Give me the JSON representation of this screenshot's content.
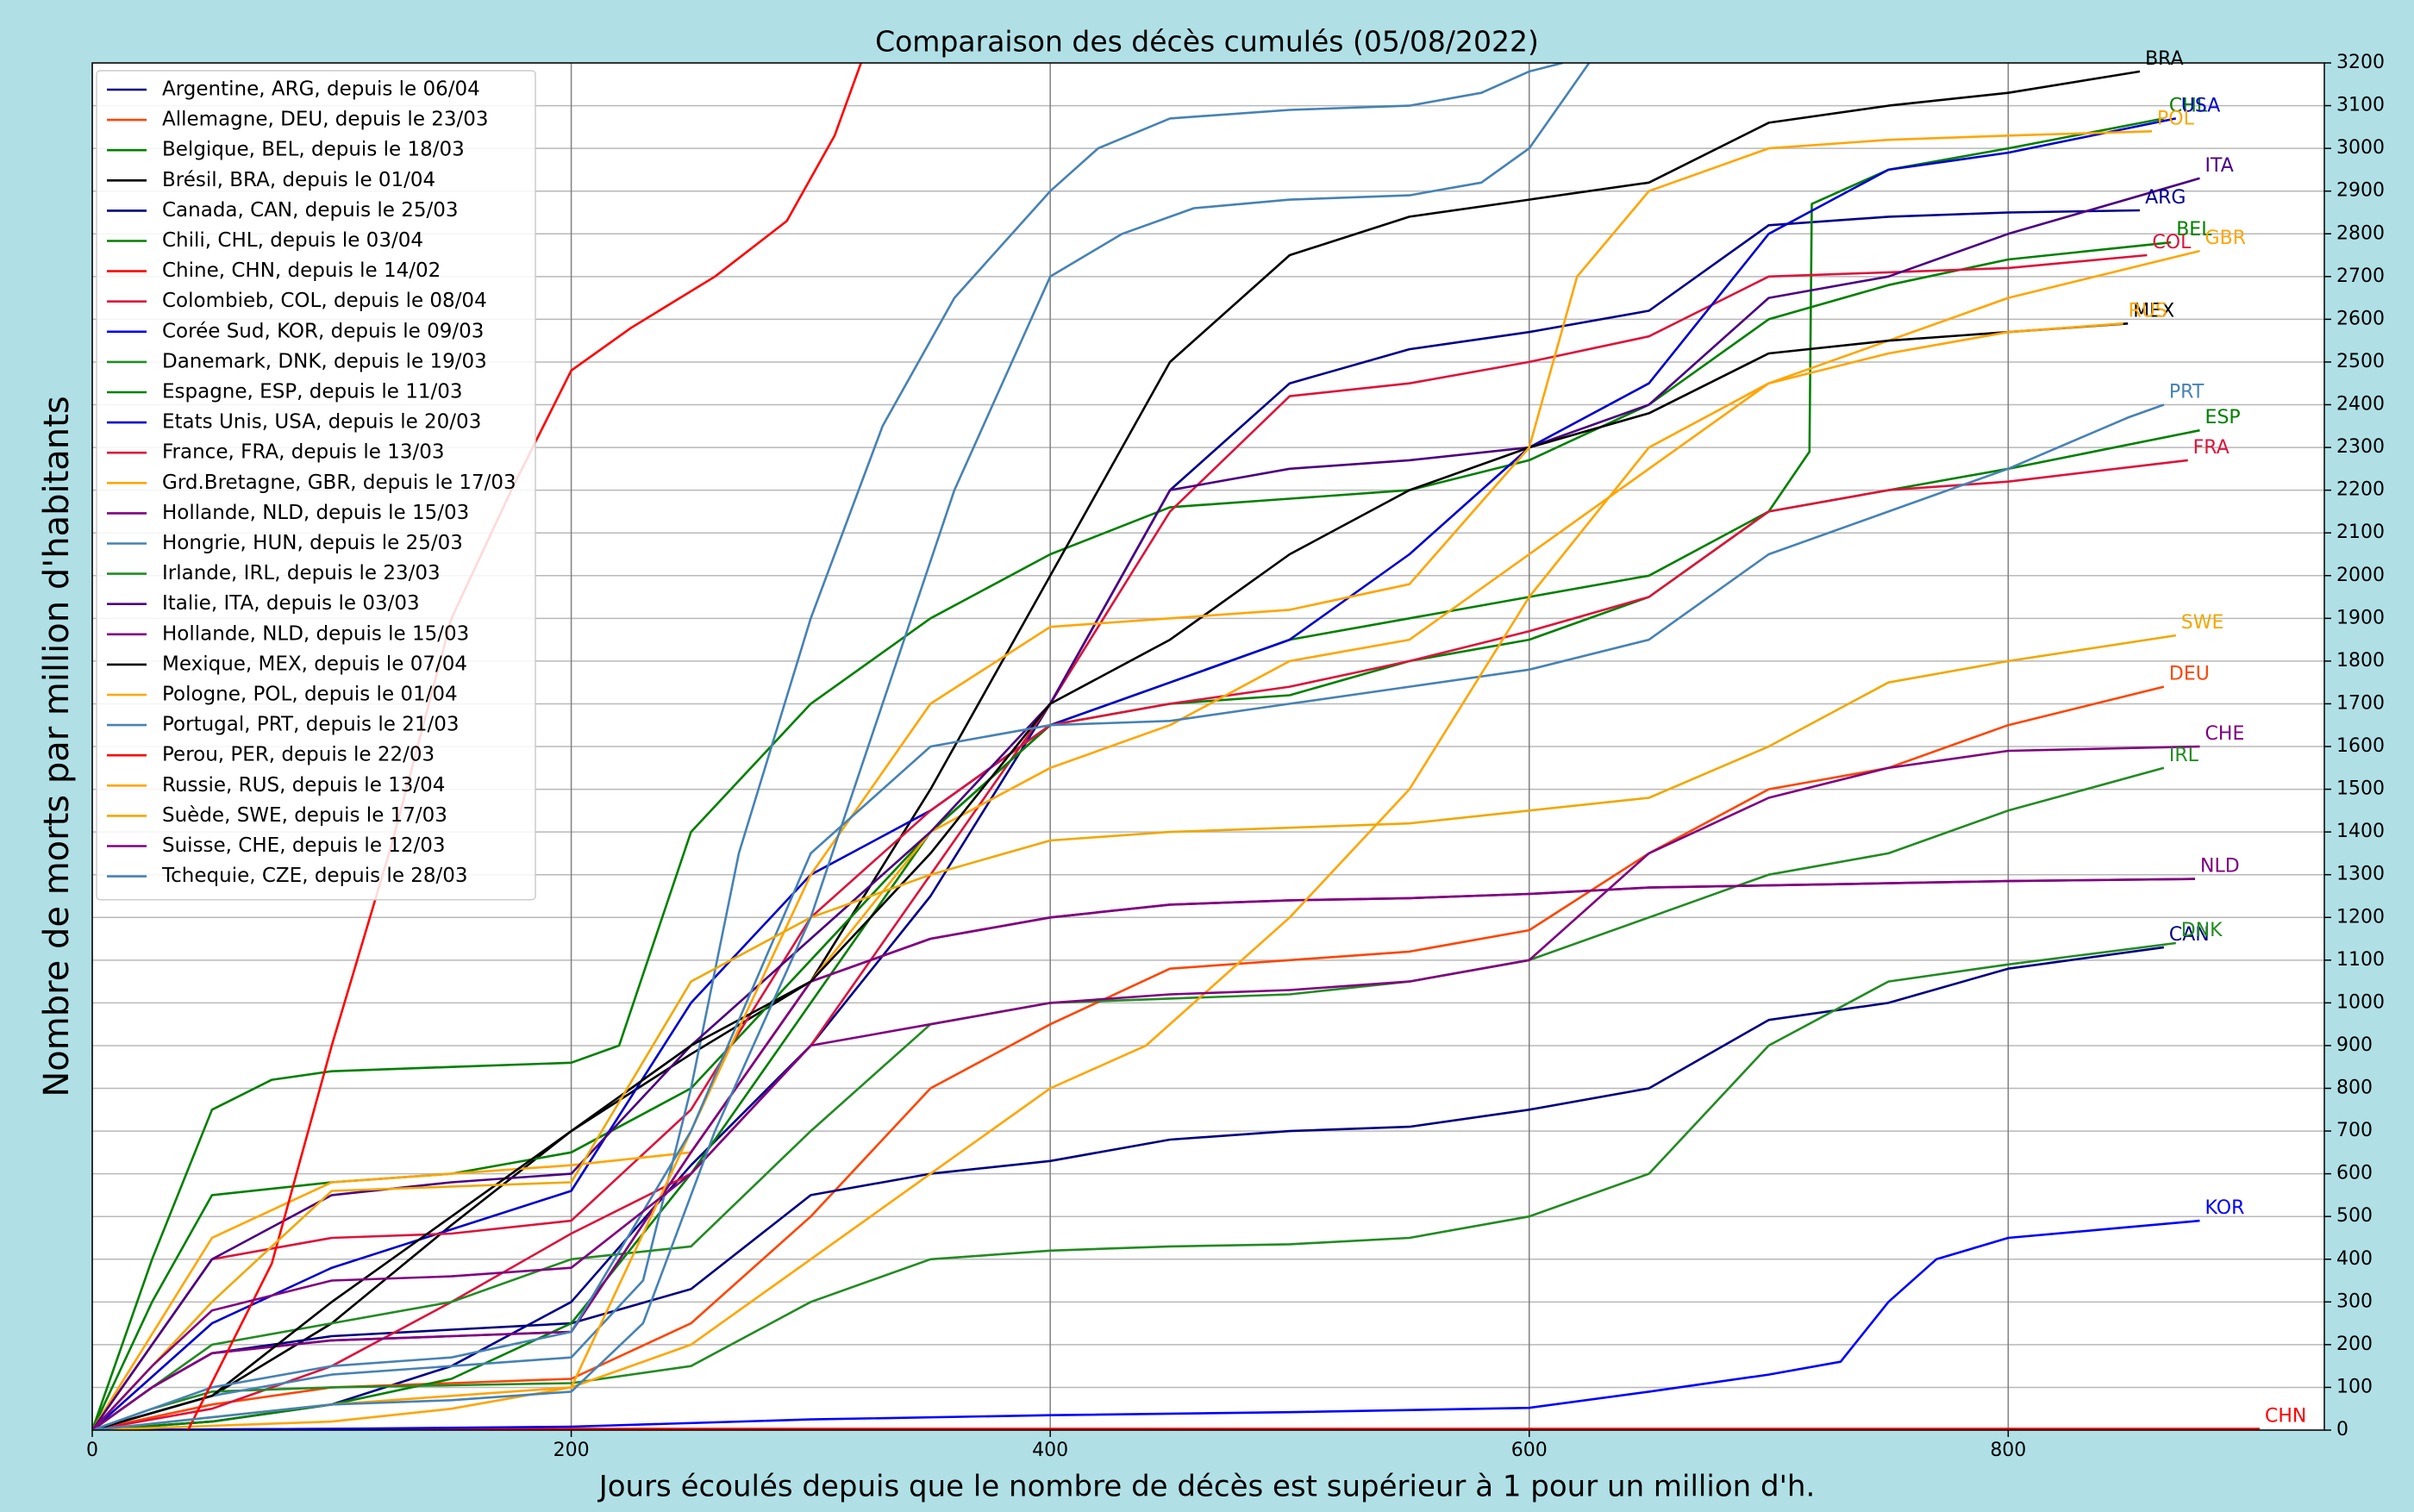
{
  "chart_data": {
    "type": "line",
    "title": "Comparaison des décès cumulés  (05/08/2022)",
    "xlabel": "Jours écoulés depuis que le nombre de décès est supérieur à 1 pour un million d'h.",
    "ylabel": "Nombre de morts par million d'habitants",
    "xlim": [
      0,
      932
    ],
    "ylim": [
      0,
      3200
    ],
    "xticks": [
      0,
      200,
      400,
      600,
      800
    ],
    "yticks": [
      0,
      100,
      200,
      300,
      400,
      500,
      600,
      700,
      800,
      900,
      1000,
      1100,
      1200,
      1300,
      1400,
      1500,
      1600,
      1700,
      1800,
      1900,
      2000,
      2100,
      2200,
      2300,
      2400,
      2500,
      2600,
      2700,
      2800,
      2900,
      3000,
      3100,
      3200
    ],
    "grid": true,
    "legend": "upper left",
    "series": [
      {
        "name": "Argentine, ARG, depuis le 06/04",
        "label": "ARG",
        "color": "#00008b",
        "x": [
          0,
          50,
          100,
          150,
          200,
          250,
          300,
          350,
          400,
          450,
          500,
          550,
          600,
          650,
          700,
          750,
          800,
          855
        ],
        "values": [
          0,
          20,
          60,
          150,
          300,
          620,
          900,
          1250,
          1700,
          2200,
          2450,
          2530,
          2570,
          2620,
          2820,
          2840,
          2850,
          2855
        ]
      },
      {
        "name": "Allemagne, DEU, depuis le 23/03",
        "label": "DEU",
        "color": "#ff4500",
        "x": [
          0,
          50,
          100,
          150,
          200,
          250,
          300,
          350,
          400,
          450,
          500,
          550,
          600,
          650,
          700,
          750,
          800,
          865
        ],
        "values": [
          0,
          60,
          100,
          110,
          120,
          250,
          500,
          800,
          950,
          1080,
          1100,
          1120,
          1170,
          1350,
          1500,
          1550,
          1650,
          1740
        ]
      },
      {
        "name": "Belgique, BEL, depuis le 18/03",
        "label": "BEL",
        "color": "#008000",
        "x": [
          0,
          25,
          50,
          75,
          100,
          150,
          200,
          220,
          250,
          300,
          350,
          400,
          450,
          500,
          550,
          600,
          650,
          700,
          750,
          800,
          868
        ],
        "values": [
          0,
          400,
          750,
          820,
          840,
          850,
          860,
          900,
          1400,
          1700,
          1900,
          2050,
          2160,
          2180,
          2200,
          2270,
          2400,
          2600,
          2680,
          2740,
          2780
        ]
      },
      {
        "name": "Brésil, BRA, depuis le 01/04",
        "label": "BRA",
        "color": "#000000",
        "x": [
          0,
          50,
          100,
          150,
          200,
          250,
          300,
          350,
          400,
          450,
          500,
          550,
          600,
          650,
          700,
          750,
          800,
          855
        ],
        "values": [
          0,
          80,
          250,
          480,
          700,
          880,
          1050,
          1500,
          2000,
          2500,
          2750,
          2840,
          2880,
          2920,
          3060,
          3100,
          3130,
          3180
        ]
      },
      {
        "name": "Canada, CAN, depuis le 25/03",
        "label": "CAN",
        "color": "#000080",
        "x": [
          0,
          25,
          50,
          100,
          150,
          200,
          250,
          300,
          350,
          400,
          450,
          500,
          550,
          600,
          650,
          700,
          750,
          800,
          865
        ],
        "values": [
          0,
          100,
          180,
          220,
          235,
          250,
          330,
          550,
          600,
          630,
          680,
          700,
          710,
          750,
          800,
          960,
          1000,
          1080,
          1130
        ]
      },
      {
        "name": "Chili, CHL, depuis le 03/04",
        "label": "CHL",
        "color": "#008000",
        "x": [
          0,
          50,
          100,
          150,
          200,
          250,
          300,
          350,
          400,
          450,
          500,
          550,
          600,
          650,
          700,
          717,
          718,
          750,
          800,
          865
        ],
        "values": [
          0,
          20,
          60,
          120,
          250,
          600,
          1000,
          1400,
          1650,
          1750,
          1850,
          1900,
          1950,
          2000,
          2150,
          2290,
          2870,
          2950,
          3000,
          3070
        ]
      },
      {
        "name": "Chine, CHN, depuis le 14/02",
        "label": "CHN",
        "color": "#ff0000",
        "x": [
          0,
          100,
          905
        ],
        "values": [
          0,
          3,
          3
        ]
      },
      {
        "name": "Colombieb, COL, depuis le 08/04",
        "label": "COL",
        "color": "#dc143c",
        "x": [
          0,
          50,
          100,
          150,
          200,
          250,
          300,
          350,
          400,
          450,
          500,
          550,
          600,
          650,
          700,
          750,
          800,
          858
        ],
        "values": [
          0,
          50,
          150,
          300,
          460,
          600,
          900,
          1300,
          1700,
          2150,
          2420,
          2450,
          2500,
          2560,
          2700,
          2710,
          2720,
          2750
        ]
      },
      {
        "name": "Corée Sud, KOR, depuis le 09/03",
        "label": "KOR",
        "color": "#0000ff",
        "x": [
          0,
          100,
          200,
          300,
          400,
          500,
          600,
          650,
          700,
          730,
          750,
          770,
          800,
          850,
          880
        ],
        "values": [
          0,
          3,
          8,
          25,
          35,
          42,
          52,
          90,
          130,
          160,
          300,
          400,
          450,
          475,
          490
        ]
      },
      {
        "name": "Danemark, DNK, depuis le 19/03",
        "label": "DNK",
        "color": "#228b22",
        "x": [
          0,
          25,
          50,
          100,
          150,
          200,
          250,
          300,
          350,
          400,
          450,
          500,
          550,
          600,
          650,
          700,
          750,
          800,
          870
        ],
        "values": [
          0,
          50,
          90,
          100,
          105,
          110,
          150,
          300,
          400,
          420,
          430,
          435,
          450,
          500,
          600,
          900,
          1050,
          1090,
          1140
        ]
      },
      {
        "name": "Espagne, ESP, depuis le 11/03",
        "label": "ESP",
        "color": "#008000",
        "x": [
          0,
          25,
          50,
          100,
          150,
          200,
          250,
          300,
          350,
          400,
          450,
          500,
          550,
          600,
          650,
          700,
          750,
          800,
          880
        ],
        "values": [
          0,
          300,
          550,
          580,
          600,
          650,
          800,
          1100,
          1400,
          1650,
          1700,
          1720,
          1800,
          1850,
          1950,
          2150,
          2200,
          2250,
          2340
        ]
      },
      {
        "name": "Etats Unis, USA, depuis le 20/03",
        "label": "USA",
        "color": "#0000cd",
        "x": [
          0,
          50,
          100,
          150,
          200,
          250,
          300,
          350,
          400,
          450,
          500,
          550,
          600,
          650,
          700,
          750,
          800,
          870
        ],
        "values": [
          0,
          250,
          380,
          470,
          560,
          1000,
          1300,
          1450,
          1650,
          1750,
          1850,
          2050,
          2300,
          2450,
          2800,
          2950,
          2990,
          3070
        ]
      },
      {
        "name": "France, FRA, depuis le 13/03",
        "label": "FRA",
        "color": "#dc143c",
        "x": [
          0,
          25,
          50,
          100,
          150,
          200,
          250,
          300,
          350,
          400,
          450,
          500,
          550,
          600,
          650,
          700,
          750,
          800,
          875
        ],
        "values": [
          0,
          200,
          400,
          450,
          460,
          490,
          750,
          1200,
          1450,
          1650,
          1700,
          1740,
          1800,
          1870,
          1950,
          2150,
          2200,
          2220,
          2270
        ]
      },
      {
        "name": "Grd.Bretagne, GBR, depuis le 17/03",
        "label": "GBR",
        "color": "#ffa500",
        "x": [
          0,
          50,
          100,
          150,
          200,
          250,
          300,
          350,
          400,
          450,
          500,
          550,
          600,
          650,
          700,
          750,
          800,
          880
        ],
        "values": [
          0,
          450,
          580,
          600,
          620,
          650,
          1050,
          1400,
          1550,
          1650,
          1800,
          1850,
          2050,
          2250,
          2450,
          2550,
          2650,
          2760
        ]
      },
      {
        "name": "Hollande, NLD, depuis le 15/03",
        "label": "NLD",
        "color": "#800080",
        "x": [
          0,
          25,
          50,
          100,
          150,
          200,
          250,
          300,
          350,
          400,
          450,
          500,
          550,
          600,
          650,
          700,
          750,
          800,
          878
        ],
        "values": [
          0,
          100,
          180,
          210,
          220,
          230,
          650,
          1050,
          1150,
          1200,
          1230,
          1240,
          1245,
          1255,
          1270,
          1275,
          1280,
          1285,
          1290
        ]
      },
      {
        "name": "Hongrie, HUN, depuis le 25/03",
        "color": "#4682b4",
        "x": [
          0,
          50,
          100,
          150,
          200,
          230,
          250,
          270,
          300,
          330,
          360,
          400,
          420,
          450,
          500,
          550,
          580,
          600,
          614
        ],
        "values": [
          0,
          80,
          130,
          150,
          170,
          350,
          800,
          1350,
          1900,
          2350,
          2650,
          2900,
          3000,
          3070,
          3090,
          3100,
          3130,
          3180,
          3200
        ]
      },
      {
        "name": "Irlande, IRL, depuis le 23/03",
        "label": "IRL",
        "color": "#228b22",
        "x": [
          0,
          25,
          50,
          100,
          150,
          200,
          250,
          300,
          350,
          400,
          450,
          500,
          550,
          600,
          650,
          700,
          750,
          800,
          865
        ],
        "values": [
          0,
          100,
          200,
          250,
          300,
          400,
          430,
          700,
          950,
          1000,
          1010,
          1020,
          1050,
          1100,
          1200,
          1300,
          1350,
          1450,
          1550
        ]
      },
      {
        "name": "Italie, ITA, depuis le 03/03",
        "label": "ITA",
        "color": "#4b0082",
        "x": [
          0,
          25,
          50,
          100,
          150,
          200,
          250,
          300,
          350,
          400,
          450,
          500,
          550,
          600,
          650,
          700,
          750,
          800,
          880
        ],
        "values": [
          0,
          200,
          400,
          550,
          580,
          600,
          900,
          1150,
          1400,
          1700,
          2200,
          2250,
          2270,
          2300,
          2400,
          2650,
          2700,
          2800,
          2930
        ]
      },
      {
        "name": "Hollande, NLD, depuis le 15/03",
        "color": "#800080",
        "x": [
          0,
          25,
          50,
          100,
          150,
          200,
          250,
          300,
          350,
          400,
          450,
          500,
          550,
          600,
          650,
          700,
          750,
          800,
          878
        ],
        "values": [
          0,
          100,
          180,
          210,
          220,
          230,
          650,
          1050,
          1150,
          1200,
          1230,
          1240,
          1245,
          1255,
          1270,
          1275,
          1280,
          1285,
          1290
        ]
      },
      {
        "name": "Mexique, MEX, depuis le 07/04",
        "label": "MEX",
        "color": "#000000",
        "x": [
          0,
          50,
          100,
          150,
          200,
          250,
          300,
          350,
          400,
          450,
          500,
          550,
          600,
          650,
          700,
          750,
          800,
          850
        ],
        "values": [
          0,
          80,
          300,
          500,
          700,
          900,
          1050,
          1350,
          1700,
          1850,
          2050,
          2200,
          2300,
          2380,
          2520,
          2550,
          2570,
          2590
        ]
      },
      {
        "name": "Pologne, POL, depuis le 01/04",
        "label": "POL",
        "color": "#ffa500",
        "x": [
          0,
          50,
          100,
          150,
          200,
          250,
          300,
          350,
          400,
          450,
          500,
          550,
          600,
          620,
          650,
          700,
          750,
          800,
          860
        ],
        "values": [
          0,
          10,
          20,
          50,
          100,
          700,
          1300,
          1700,
          1880,
          1900,
          1920,
          1980,
          2300,
          2700,
          2900,
          3000,
          3020,
          3030,
          3040
        ]
      },
      {
        "name": "Portugal, PRT, depuis le 21/03",
        "label": "PRT",
        "color": "#4682b4",
        "x": [
          0,
          50,
          100,
          150,
          200,
          250,
          300,
          350,
          400,
          450,
          500,
          550,
          600,
          650,
          700,
          750,
          800,
          850,
          865
        ],
        "values": [
          0,
          100,
          150,
          170,
          230,
          700,
          1350,
          1600,
          1650,
          1660,
          1700,
          1740,
          1780,
          1850,
          2050,
          2150,
          2250,
          2370,
          2400
        ]
      },
      {
        "name": "Perou, PER, depuis le 22/03",
        "color": "#ff0000",
        "x": [
          40,
          75,
          100,
          125,
          150,
          175,
          200,
          225,
          260,
          290,
          310,
          321
        ],
        "values": [
          0,
          390,
          900,
          1370,
          1900,
          2200,
          2480,
          2580,
          2700,
          2830,
          3030,
          3200
        ]
      },
      {
        "name": "Russie, RUS, depuis le 13/04",
        "label": "RUS",
        "color": "#ffa500",
        "x": [
          0,
          50,
          100,
          150,
          200,
          250,
          300,
          350,
          400,
          440,
          500,
          550,
          600,
          650,
          700,
          750,
          800,
          848
        ],
        "values": [
          0,
          30,
          60,
          80,
          100,
          200,
          400,
          600,
          800,
          900,
          1200,
          1500,
          1950,
          2300,
          2450,
          2520,
          2570,
          2590
        ]
      },
      {
        "name": "Suède, SWE, depuis le 17/03",
        "label": "SWE",
        "color": "#f0a800",
        "x": [
          0,
          50,
          100,
          150,
          200,
          250,
          300,
          350,
          400,
          450,
          500,
          550,
          600,
          650,
          700,
          750,
          800,
          870
        ],
        "values": [
          0,
          300,
          560,
          570,
          580,
          1050,
          1200,
          1300,
          1380,
          1400,
          1410,
          1420,
          1450,
          1480,
          1600,
          1750,
          1800,
          1860
        ]
      },
      {
        "name": "Suisse, CHE, depuis le 12/03",
        "label": "CHE",
        "color": "#800080",
        "x": [
          0,
          25,
          50,
          100,
          150,
          200,
          250,
          300,
          350,
          400,
          450,
          500,
          550,
          600,
          650,
          700,
          750,
          800,
          880
        ],
        "values": [
          0,
          150,
          280,
          350,
          360,
          380,
          600,
          900,
          950,
          1000,
          1020,
          1030,
          1050,
          1100,
          1350,
          1480,
          1550,
          1590,
          1600
        ]
      },
      {
        "name": "Tchequie, CZE, depuis le 28/03",
        "color": "#4682b4",
        "x": [
          0,
          50,
          100,
          150,
          200,
          230,
          260,
          300,
          330,
          360,
          400,
          430,
          460,
          500,
          550,
          580,
          600,
          615,
          625
        ],
        "values": [
          0,
          30,
          60,
          70,
          90,
          250,
          700,
          1200,
          1700,
          2200,
          2700,
          2800,
          2860,
          2880,
          2890,
          2920,
          3000,
          3120,
          3200
        ]
      }
    ]
  }
}
